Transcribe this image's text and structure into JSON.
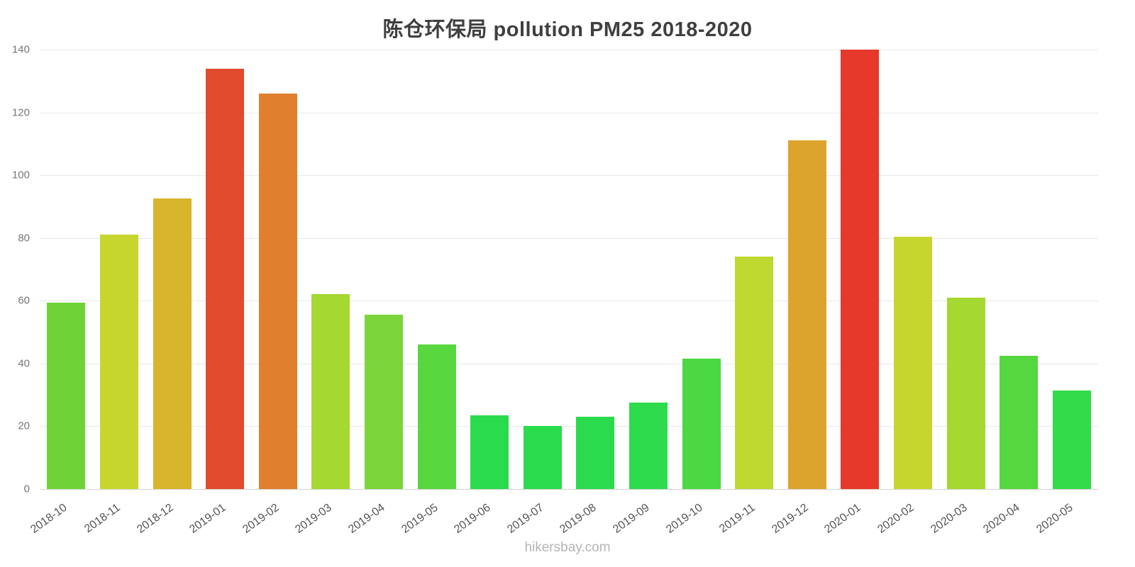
{
  "footer": {
    "watermark": "hikersbay.com"
  },
  "chart_data": {
    "type": "bar",
    "title": "陈仓环保局 pollution PM25 2018-2020",
    "xlabel": "",
    "ylabel": "",
    "ylim": [
      0,
      140
    ],
    "yticks": [
      0,
      20,
      40,
      60,
      80,
      100,
      120,
      140
    ],
    "grid": true,
    "legend": "none",
    "categories": [
      "2018-10",
      "2018-11",
      "2018-12",
      "2019-01",
      "2019-02",
      "2019-03",
      "2019-04",
      "2019-05",
      "2019-06",
      "2019-07",
      "2019-08",
      "2019-09",
      "2019-10",
      "2019-11",
      "2019-12",
      "2020-01",
      "2020-02",
      "2020-03",
      "2020-04",
      "2020-05"
    ],
    "values": [
      59.5,
      81,
      92.5,
      134,
      126,
      62,
      55.5,
      46,
      23.5,
      20,
      23,
      27.5,
      41.5,
      74,
      111,
      140,
      80.5,
      61,
      42.5,
      31.5
    ],
    "bar_colors": [
      "#6fd338",
      "#c6d62f",
      "#d7b52c",
      "#e14b2e",
      "#e07f2e",
      "#a5d831",
      "#7bd53a",
      "#59d73e",
      "#2bdb4e",
      "#2bdb4e",
      "#2bdb4e",
      "#2edb4c",
      "#4cd842",
      "#c0d930",
      "#dda42d",
      "#e6392b",
      "#c6d62f",
      "#a5d831",
      "#55d73f",
      "#33da49"
    ]
  }
}
